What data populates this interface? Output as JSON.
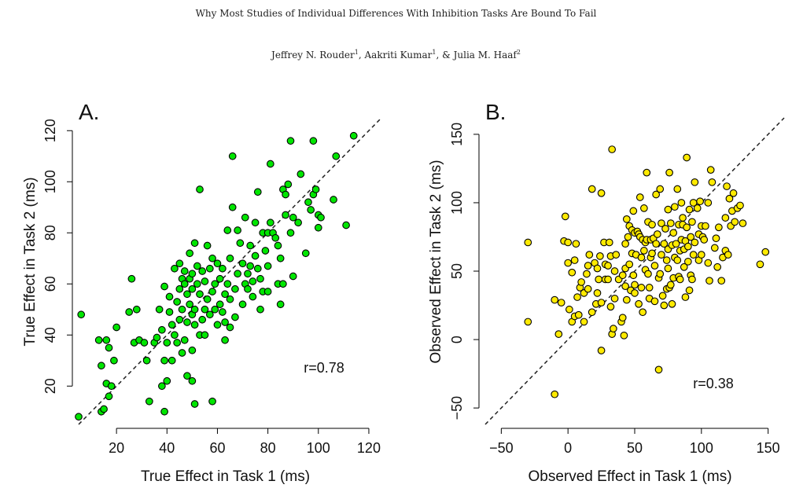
{
  "header": {
    "title": "Why Most Studies of Individual Differences With Inhibition Tasks Are Bound To Fail",
    "authors": [
      {
        "name": "Jeffrey N. Rouder",
        "sup": "1",
        "sep": ", "
      },
      {
        "name": "Aakriti Kumar",
        "sup": "1",
        "sep": ", & "
      },
      {
        "name": "Julia M. Haaf",
        "sup": "2",
        "sep": ""
      }
    ]
  },
  "chart_data": [
    {
      "type": "scatter",
      "panel_label": "A.",
      "xlabel": "True Effect in Task 1 (ms)",
      "ylabel": "True Effect in Task 2 (ms)",
      "xlim": [
        5,
        125
      ],
      "ylim": [
        5,
        125
      ],
      "xticks": [
        20,
        40,
        60,
        80,
        100,
        120
      ],
      "yticks": [
        20,
        40,
        60,
        80,
        100,
        120
      ],
      "annotation": "r=0.78",
      "point_color": "#00e600",
      "reference_line": "y = x (dashed)",
      "points": [
        [
          5,
          8
        ],
        [
          6,
          48
        ],
        [
          13,
          38
        ],
        [
          14,
          28
        ],
        [
          14,
          10
        ],
        [
          15,
          11
        ],
        [
          16,
          38
        ],
        [
          16,
          21
        ],
        [
          17,
          35
        ],
        [
          17,
          16
        ],
        [
          18,
          20
        ],
        [
          19,
          30
        ],
        [
          20,
          43
        ],
        [
          25,
          49
        ],
        [
          26,
          62
        ],
        [
          27,
          37
        ],
        [
          28,
          50
        ],
        [
          29,
          38
        ],
        [
          31,
          37
        ],
        [
          32,
          30
        ],
        [
          33,
          14
        ],
        [
          35,
          37
        ],
        [
          36,
          39
        ],
        [
          37,
          50
        ],
        [
          38,
          42
        ],
        [
          38,
          20
        ],
        [
          39,
          59
        ],
        [
          39,
          30
        ],
        [
          39,
          10
        ],
        [
          40,
          37
        ],
        [
          40,
          22
        ],
        [
          41,
          49
        ],
        [
          41,
          55
        ],
        [
          42,
          44
        ],
        [
          42,
          30
        ],
        [
          43,
          66
        ],
        [
          43,
          40
        ],
        [
          44,
          53
        ],
        [
          44,
          37
        ],
        [
          45,
          68
        ],
        [
          45,
          58
        ],
        [
          45,
          46
        ],
        [
          46,
          62
        ],
        [
          46,
          50
        ],
        [
          46,
          33
        ],
        [
          47,
          60
        ],
        [
          47,
          38
        ],
        [
          47,
          65
        ],
        [
          48,
          56
        ],
        [
          48,
          45
        ],
        [
          48,
          24
        ],
        [
          49,
          72
        ],
        [
          49,
          52
        ],
        [
          49,
          62
        ],
        [
          50,
          64
        ],
        [
          50,
          48
        ],
        [
          50,
          34
        ],
        [
          50,
          22
        ],
        [
          50,
          58
        ],
        [
          51,
          76
        ],
        [
          51,
          50
        ],
        [
          51,
          44
        ],
        [
          51,
          13
        ],
        [
          52,
          60
        ],
        [
          52,
          67
        ],
        [
          53,
          56
        ],
        [
          53,
          40
        ],
        [
          53,
          97
        ],
        [
          54,
          46
        ],
        [
          54,
          65
        ],
        [
          55,
          61
        ],
        [
          55,
          50
        ],
        [
          55,
          40
        ],
        [
          56,
          75
        ],
        [
          56,
          54
        ],
        [
          57,
          66
        ],
        [
          57,
          48
        ],
        [
          58,
          70
        ],
        [
          58,
          57
        ],
        [
          58,
          14
        ],
        [
          59,
          50
        ],
        [
          59,
          60
        ],
        [
          60,
          68
        ],
        [
          60,
          44
        ],
        [
          61,
          62
        ],
        [
          61,
          52
        ],
        [
          62,
          66
        ],
        [
          62,
          49
        ],
        [
          63,
          56
        ],
        [
          63,
          45
        ],
        [
          63,
          38
        ],
        [
          64,
          81
        ],
        [
          64,
          60
        ],
        [
          65,
          70
        ],
        [
          65,
          54
        ],
        [
          65,
          43
        ],
        [
          66,
          90
        ],
        [
          66,
          110
        ],
        [
          67,
          58
        ],
        [
          67,
          47
        ],
        [
          68,
          64
        ],
        [
          68,
          81
        ],
        [
          69,
          76
        ],
        [
          70,
          68
        ],
        [
          70,
          52
        ],
        [
          71,
          86
        ],
        [
          71,
          60
        ],
        [
          72,
          64
        ],
        [
          72,
          58
        ],
        [
          73,
          67
        ],
        [
          73,
          75
        ],
        [
          74,
          55
        ],
        [
          74,
          61
        ],
        [
          75,
          84
        ],
        [
          75,
          71
        ],
        [
          76,
          96
        ],
        [
          76,
          66
        ],
        [
          77,
          62
        ],
        [
          77,
          50
        ],
        [
          78,
          80
        ],
        [
          78,
          57
        ],
        [
          79,
          73
        ],
        [
          80,
          80
        ],
        [
          80,
          57
        ],
        [
          80,
          67
        ],
        [
          81,
          84
        ],
        [
          81,
          107
        ],
        [
          82,
          80
        ],
        [
          83,
          78
        ],
        [
          84,
          75
        ],
        [
          84,
          60
        ],
        [
          85,
          70
        ],
        [
          85,
          52
        ],
        [
          86,
          97
        ],
        [
          86,
          60
        ],
        [
          87,
          95
        ],
        [
          87,
          87
        ],
        [
          88,
          99
        ],
        [
          89,
          80
        ],
        [
          89,
          116
        ],
        [
          90,
          63
        ],
        [
          90,
          86
        ],
        [
          92,
          84
        ],
        [
          93,
          103
        ],
        [
          95,
          72
        ],
        [
          96,
          92
        ],
        [
          97,
          89
        ],
        [
          98,
          116
        ],
        [
          98,
          95
        ],
        [
          99,
          97
        ],
        [
          100,
          82
        ],
        [
          100,
          87
        ],
        [
          101,
          86
        ],
        [
          106,
          93
        ],
        [
          107,
          110
        ],
        [
          111,
          83
        ],
        [
          114,
          118
        ]
      ]
    },
    {
      "type": "scatter",
      "panel_label": "B.",
      "xlabel": "Observed Effect in Task 1 (ms)",
      "ylabel": "Observed Effect in Task 2 (ms)",
      "xlim": [
        -62,
        162
      ],
      "ylim": [
        -62,
        162
      ],
      "xticks": [
        -50,
        0,
        50,
        100,
        150
      ],
      "yticks": [
        -50,
        0,
        50,
        100,
        150
      ],
      "annotation": "r=0.38",
      "point_color": "#ffea00",
      "reference_line": "y = x (dashed)",
      "points": [
        [
          -30,
          71
        ],
        [
          -30,
          13
        ],
        [
          -10,
          -40
        ],
        [
          -10,
          29
        ],
        [
          -7,
          4
        ],
        [
          -5,
          27
        ],
        [
          -3,
          72
        ],
        [
          -2,
          90
        ],
        [
          0,
          56
        ],
        [
          0,
          71
        ],
        [
          1,
          22
        ],
        [
          3,
          49
        ],
        [
          3,
          13
        ],
        [
          5,
          58
        ],
        [
          5,
          17
        ],
        [
          6,
          70
        ],
        [
          7,
          31
        ],
        [
          8,
          18
        ],
        [
          9,
          38
        ],
        [
          10,
          42
        ],
        [
          12,
          13
        ],
        [
          12,
          34
        ],
        [
          14,
          48
        ],
        [
          15,
          37
        ],
        [
          15,
          54
        ],
        [
          16,
          62
        ],
        [
          18,
          20
        ],
        [
          18,
          110
        ],
        [
          20,
          56
        ],
        [
          21,
          26
        ],
        [
          22,
          34
        ],
        [
          22,
          52
        ],
        [
          23,
          44
        ],
        [
          24,
          61
        ],
        [
          25,
          27
        ],
        [
          25,
          -8
        ],
        [
          25,
          107
        ],
        [
          27,
          71
        ],
        [
          28,
          44
        ],
        [
          28,
          55
        ],
        [
          30,
          54
        ],
        [
          30,
          44
        ],
        [
          31,
          71
        ],
        [
          32,
          24
        ],
        [
          32,
          61
        ],
        [
          33,
          4
        ],
        [
          33,
          139
        ],
        [
          34,
          8
        ],
        [
          35,
          50
        ],
        [
          35,
          30
        ],
        [
          36,
          62
        ],
        [
          38,
          44
        ],
        [
          40,
          13
        ],
        [
          41,
          16
        ],
        [
          41,
          47
        ],
        [
          42,
          3
        ],
        [
          43,
          70
        ],
        [
          43,
          52
        ],
        [
          43,
          39
        ],
        [
          44,
          29
        ],
        [
          44,
          88
        ],
        [
          45,
          75
        ],
        [
          46,
          83
        ],
        [
          46,
          55
        ],
        [
          47,
          36
        ],
        [
          48,
          63
        ],
        [
          48,
          80
        ],
        [
          49,
          94
        ],
        [
          49,
          47
        ],
        [
          50,
          40
        ],
        [
          50,
          78
        ],
        [
          50,
          34
        ],
        [
          51,
          62
        ],
        [
          52,
          79
        ],
        [
          53,
          26
        ],
        [
          53,
          77
        ],
        [
          54,
          104
        ],
        [
          54,
          75
        ],
        [
          55,
          38
        ],
        [
          55,
          60
        ],
        [
          56,
          20
        ],
        [
          56,
          73
        ],
        [
          57,
          96
        ],
        [
          57,
          65
        ],
        [
          58,
          51
        ],
        [
          58,
          71
        ],
        [
          59,
          73
        ],
        [
          59,
          122
        ],
        [
          60,
          48
        ],
        [
          60,
          86
        ],
        [
          61,
          38
        ],
        [
          61,
          30
        ],
        [
          62,
          60
        ],
        [
          62,
          73
        ],
        [
          63,
          63
        ],
        [
          63,
          84
        ],
        [
          64,
          74
        ],
        [
          65,
          54
        ],
        [
          65,
          28
        ],
        [
          66,
          106
        ],
        [
          66,
          70
        ],
        [
          67,
          77
        ],
        [
          68,
          -22
        ],
        [
          68,
          45
        ],
        [
          69,
          48
        ],
        [
          69,
          110
        ],
        [
          70,
          62
        ],
        [
          70,
          85
        ],
        [
          71,
          32
        ],
        [
          72,
          25
        ],
        [
          72,
          70
        ],
        [
          73,
          81
        ],
        [
          74,
          58
        ],
        [
          74,
          37
        ],
        [
          75,
          66
        ],
        [
          75,
          52
        ],
        [
          75,
          95
        ],
        [
          76,
          38
        ],
        [
          76,
          122
        ],
        [
          77,
          40
        ],
        [
          77,
          85
        ],
        [
          78,
          26
        ],
        [
          78,
          69
        ],
        [
          79,
          78
        ],
        [
          79,
          45
        ],
        [
          80,
          97
        ],
        [
          80,
          60
        ],
        [
          81,
          70
        ],
        [
          82,
          110
        ],
        [
          82,
          58
        ],
        [
          83,
          84
        ],
        [
          83,
          46
        ],
        [
          84,
          44
        ],
        [
          84,
          65
        ],
        [
          85,
          73
        ],
        [
          85,
          100
        ],
        [
          86,
          84
        ],
        [
          86,
          89
        ],
        [
          87,
          53
        ],
        [
          87,
          66
        ],
        [
          88,
          31
        ],
        [
          88,
          72
        ],
        [
          89,
          82
        ],
        [
          89,
          133
        ],
        [
          90,
          57
        ],
        [
          90,
          68
        ],
        [
          91,
          36
        ],
        [
          91,
          95
        ],
        [
          92,
          47
        ],
        [
          92,
          75
        ],
        [
          93,
          44
        ],
        [
          93,
          86
        ],
        [
          94,
          100
        ],
        [
          94,
          62
        ],
        [
          95,
          115
        ],
        [
          95,
          71
        ],
        [
          97,
          96
        ],
        [
          98,
          58
        ],
        [
          98,
          77
        ],
        [
          99,
          101
        ],
        [
          100,
          62
        ],
        [
          100,
          83
        ],
        [
          101,
          75
        ],
        [
          102,
          73
        ],
        [
          103,
          83
        ],
        [
          105,
          100
        ],
        [
          105,
          56
        ],
        [
          106,
          43
        ],
        [
          107,
          124
        ],
        [
          108,
          115
        ],
        [
          110,
          67
        ],
        [
          111,
          74
        ],
        [
          112,
          53
        ],
        [
          113,
          82
        ],
        [
          115,
          43
        ],
        [
          116,
          60
        ],
        [
          118,
          89
        ],
        [
          118,
          65
        ],
        [
          119,
          112
        ],
        [
          120,
          62
        ],
        [
          121,
          103
        ],
        [
          122,
          83
        ],
        [
          123,
          94
        ],
        [
          124,
          107
        ],
        [
          125,
          86
        ],
        [
          127,
          96
        ],
        [
          129,
          98
        ],
        [
          131,
          85
        ],
        [
          144,
          55
        ],
        [
          148,
          64
        ]
      ]
    }
  ]
}
